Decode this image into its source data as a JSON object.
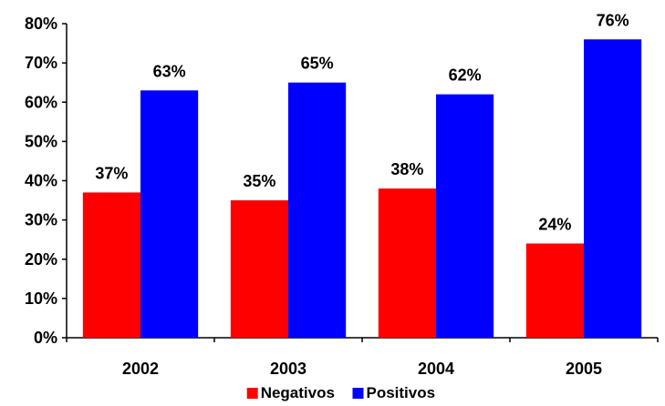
{
  "chart_data": {
    "type": "bar",
    "categories": [
      "2002",
      "2003",
      "2004",
      "2005"
    ],
    "series": [
      {
        "name": "Negativos",
        "values": [
          37,
          35,
          38,
          24
        ],
        "color": "#ff0000"
      },
      {
        "name": "Positivos",
        "values": [
          63,
          65,
          62,
          76
        ],
        "color": "#0000ff"
      }
    ],
    "data_labels": [
      [
        "37%",
        "35%",
        "38%",
        "24%"
      ],
      [
        "63%",
        "65%",
        "62%",
        "76%"
      ]
    ],
    "y_ticks": [
      "0%",
      "10%",
      "20%",
      "30%",
      "40%",
      "50%",
      "60%",
      "70%",
      "80%"
    ],
    "ylim": [
      0,
      80
    ],
    "grid": false,
    "legend_position": "bottom"
  }
}
